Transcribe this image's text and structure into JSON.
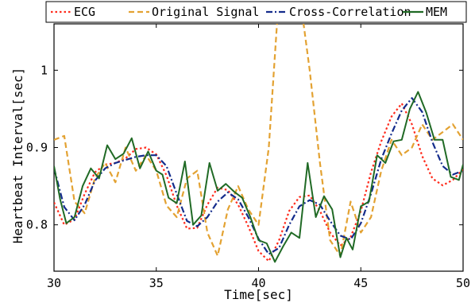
{
  "chart_data": {
    "type": "line",
    "xlabel": "Time[sec]",
    "ylabel": "Heartbeat Interval[sec]",
    "xlim": [
      30,
      50
    ],
    "ylim": [
      0.74,
      1.06
    ],
    "x_ticks": [
      "30",
      "35",
      "40",
      "45",
      "50"
    ],
    "y_ticks": [
      "0.8",
      "0.9",
      "1"
    ],
    "grid": false,
    "legend_position": "top",
    "series": [
      {
        "name": "ECG",
        "color": "#ff2b1c",
        "dash": "dotted",
        "x": [
          30,
          30.5,
          31,
          31.5,
          32,
          32.5,
          33,
          33.5,
          34,
          34.5,
          35,
          35.5,
          36,
          36.5,
          37,
          37.5,
          38,
          38.5,
          39,
          39.5,
          40,
          40.5,
          41,
          41.5,
          42,
          42.5,
          43,
          43.5,
          44,
          44.5,
          45,
          45.5,
          46,
          46.5,
          47,
          47.5,
          48,
          48.5,
          49,
          49.5,
          50
        ],
        "y": [
          0.829,
          0.8,
          0.807,
          0.84,
          0.868,
          0.878,
          0.88,
          0.886,
          0.898,
          0.9,
          0.891,
          0.864,
          0.825,
          0.795,
          0.796,
          0.826,
          0.848,
          0.845,
          0.826,
          0.798,
          0.766,
          0.753,
          0.78,
          0.818,
          0.836,
          0.838,
          0.818,
          0.79,
          0.773,
          0.784,
          0.818,
          0.868,
          0.908,
          0.94,
          0.957,
          0.93,
          0.889,
          0.86,
          0.851,
          0.858,
          0.872
        ]
      },
      {
        "name": "Original Signal",
        "color": "#e3a232",
        "dash": "dashed",
        "x": [
          30,
          30.5,
          31,
          31.5,
          32,
          32.5,
          33,
          33.5,
          34,
          34.5,
          35,
          35.5,
          36,
          36.5,
          37,
          37.5,
          38,
          38.5,
          39,
          39.5,
          40,
          40.5,
          41,
          41.5,
          42,
          42.5,
          43,
          43.5,
          44,
          44.5,
          45,
          45.5,
          46,
          46.5,
          47,
          47.5,
          48,
          48.5,
          49,
          49.5,
          50
        ],
        "y": [
          0.91,
          0.915,
          0.83,
          0.815,
          0.86,
          0.88,
          0.855,
          0.9,
          0.87,
          0.89,
          0.87,
          0.825,
          0.81,
          0.86,
          0.87,
          0.79,
          0.76,
          0.82,
          0.85,
          0.82,
          0.8,
          0.9,
          1.1,
          1.11,
          1.1,
          1.0,
          0.88,
          0.78,
          0.76,
          0.83,
          0.79,
          0.81,
          0.87,
          0.91,
          0.89,
          0.9,
          0.93,
          0.91,
          0.92,
          0.93,
          0.91
        ]
      },
      {
        "name": "Cross-Correlation",
        "color": "#142c8c",
        "dash": "dashdot",
        "x": [
          30,
          30.5,
          31,
          31.5,
          32,
          32.5,
          33,
          33.5,
          34,
          34.5,
          35,
          35.5,
          36,
          36.5,
          37,
          37.5,
          38,
          38.5,
          39,
          39.5,
          40,
          40.5,
          41,
          41.5,
          42,
          42.5,
          43,
          43.5,
          44,
          44.5,
          45,
          45.5,
          46,
          46.5,
          47,
          47.5,
          48,
          48.5,
          49,
          49.5,
          50
        ],
        "y": [
          0.873,
          0.823,
          0.806,
          0.826,
          0.857,
          0.873,
          0.88,
          0.884,
          0.888,
          0.89,
          0.89,
          0.876,
          0.84,
          0.805,
          0.798,
          0.81,
          0.83,
          0.842,
          0.833,
          0.81,
          0.782,
          0.762,
          0.77,
          0.8,
          0.824,
          0.832,
          0.826,
          0.805,
          0.786,
          0.781,
          0.802,
          0.84,
          0.885,
          0.918,
          0.948,
          0.964,
          0.946,
          0.907,
          0.876,
          0.865,
          0.87
        ]
      },
      {
        "name": "MEM",
        "color": "#206a25",
        "dash": "solid",
        "x": [
          30,
          30.3,
          30.6,
          31,
          31.4,
          31.8,
          32.2,
          32.6,
          33,
          33.4,
          33.8,
          34.2,
          34.6,
          35,
          35.3,
          35.6,
          36,
          36.4,
          36.8,
          37.2,
          37.6,
          38,
          38.4,
          38.8,
          39.2,
          39.6,
          40,
          40.4,
          40.8,
          41.2,
          41.6,
          42,
          42.4,
          42.8,
          43.2,
          43.6,
          44,
          44.3,
          44.6,
          45,
          45.4,
          45.8,
          46.2,
          46.6,
          47,
          47.4,
          47.8,
          48.2,
          48.6,
          49,
          49.4,
          49.8,
          50
        ],
        "y": [
          0.876,
          0.833,
          0.802,
          0.81,
          0.85,
          0.873,
          0.86,
          0.903,
          0.885,
          0.892,
          0.912,
          0.873,
          0.895,
          0.87,
          0.865,
          0.835,
          0.828,
          0.882,
          0.8,
          0.812,
          0.88,
          0.844,
          0.853,
          0.843,
          0.835,
          0.81,
          0.78,
          0.776,
          0.752,
          0.772,
          0.79,
          0.783,
          0.88,
          0.81,
          0.837,
          0.82,
          0.758,
          0.783,
          0.768,
          0.824,
          0.83,
          0.89,
          0.88,
          0.908,
          0.91,
          0.95,
          0.972,
          0.945,
          0.91,
          0.91,
          0.862,
          0.858,
          0.878
        ]
      }
    ]
  }
}
